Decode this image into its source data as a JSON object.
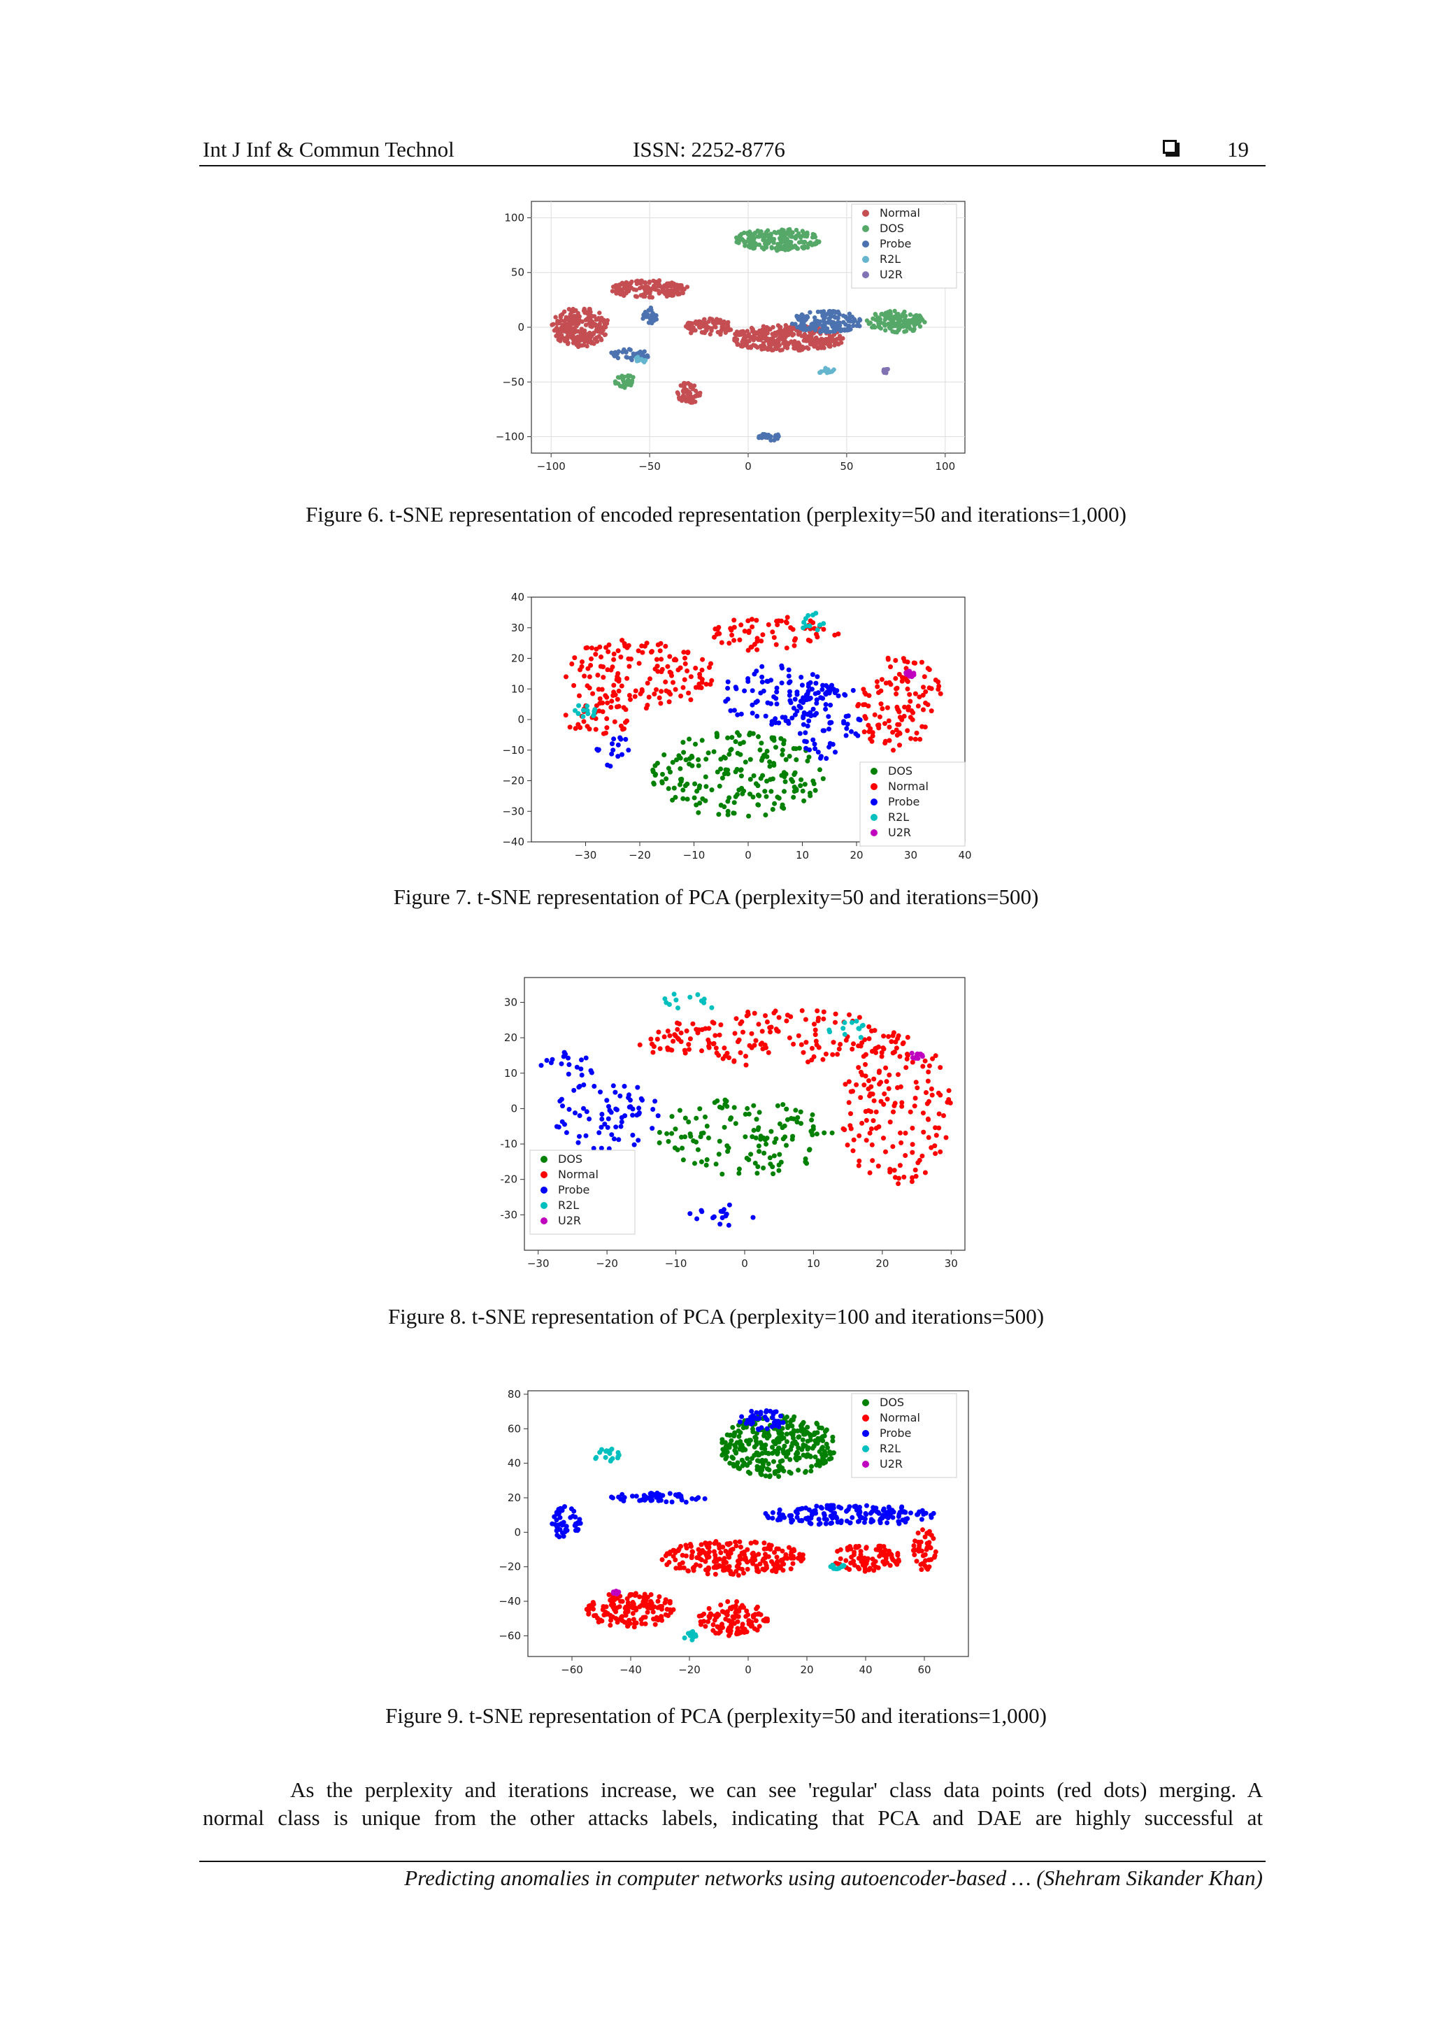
{
  "header": {
    "journal": "Int J Inf & Commun Technol",
    "issn": "ISSN: 2252-8776",
    "page_number": "19"
  },
  "captions": {
    "fig6": "Figure 6. t-SNE representation of encoded representation (perplexity=50 and iterations=1,000)",
    "fig7": "Figure 7. t-SNE representation of PCA (perplexity=50 and iterations=500)",
    "fig8": "Figure 8. t-SNE representation of PCA (perplexity=100 and iterations=500)",
    "fig9": "Figure 9. t-SNE representation of PCA (perplexity=50 and iterations=1,000)"
  },
  "body_text": {
    "line1": "As the perplexity and iterations increase, we can see 'regular' class data points (red dots) merging. A",
    "line2": "normal class is unique from the other attacks labels, indicating that PCA and DAE are highly successful at"
  },
  "footer": {
    "running_title": "Predicting anomalies in computer networks using autoencoder-based … (Shehram Sikander Khan)"
  },
  "colors": {
    "normal_fig6": "#c44e52",
    "dos_fig6": "#55a868",
    "probe_fig6": "#4c72b0",
    "r2l_fig6": "#64b5cd",
    "u2r_fig6": "#8172b3",
    "dos": "#008000",
    "normal": "#ff0000",
    "probe": "#0000ff",
    "r2l": "#00bfbf",
    "u2r": "#bf00bf"
  },
  "chart_data": [
    {
      "type": "scatter",
      "title": "",
      "xlabel": "",
      "ylabel": "",
      "xlim": [
        -110,
        110
      ],
      "ylim": [
        -115,
        115
      ],
      "x_ticks": [
        "−100",
        "−50",
        "0",
        "50",
        "100"
      ],
      "y_ticks": [
        "100",
        "50",
        "0",
        "−50",
        "−100"
      ],
      "legend": [
        "Normal",
        "DOS",
        "Probe",
        "R2L",
        "U2R"
      ],
      "legend_position": "top-right",
      "grid": true,
      "series": [
        {
          "name": "Normal",
          "clusters": [
            [
              -20,
              0,
              12,
              8
            ],
            [
              20,
              -10,
              30,
              12
            ],
            [
              -85,
              0,
              15,
              18
            ],
            [
              -30,
              -60,
              6,
              10
            ],
            [
              -50,
              35,
              20,
              8
            ]
          ]
        },
        {
          "name": "DOS",
          "clusters": [
            [
              15,
              80,
              22,
              10
            ],
            [
              75,
              5,
              15,
              10
            ],
            [
              -62,
              -50,
              6,
              6
            ]
          ]
        },
        {
          "name": "Probe",
          "clusters": [
            [
              40,
              5,
              18,
              10
            ],
            [
              10,
              -100,
              6,
              4
            ],
            [
              -60,
              -25,
              10,
              5
            ],
            [
              -50,
              10,
              4,
              8
            ]
          ]
        },
        {
          "name": "R2L",
          "clusters": [
            [
              -55,
              -30,
              3,
              3
            ],
            [
              40,
              -40,
              5,
              3
            ]
          ]
        },
        {
          "name": "U2R",
          "clusters": [
            [
              70,
              -40,
              2,
              2
            ]
          ]
        }
      ]
    },
    {
      "type": "scatter",
      "title": "",
      "xlabel": "",
      "ylabel": "",
      "xlim": [
        -40,
        40
      ],
      "ylim": [
        -40,
        40
      ],
      "x_ticks": [
        "−30",
        "−20",
        "−10",
        "0",
        "10",
        "20",
        "30",
        "40"
      ],
      "y_ticks": [
        "40",
        "30",
        "20",
        "10",
        "0",
        "−10",
        "−20",
        "−30",
        "−40"
      ],
      "legend": [
        "DOS",
        "Normal",
        "Probe",
        "R2L",
        "U2R"
      ],
      "legend_position": "lower-right",
      "grid": false,
      "series": [
        {
          "name": "DOS",
          "clusters": [
            [
              -2,
              -18,
              16,
              14
            ]
          ]
        },
        {
          "name": "Normal",
          "clusters": [
            [
              -20,
              15,
              14,
              12
            ],
            [
              5,
              28,
              12,
              6
            ],
            [
              28,
              5,
              8,
              16
            ],
            [
              -28,
              0,
              6,
              6
            ]
          ]
        },
        {
          "name": "Probe",
          "clusters": [
            [
              5,
              8,
              10,
              10
            ],
            [
              15,
              0,
              6,
              14
            ],
            [
              -25,
              -10,
              3,
              6
            ]
          ]
        },
        {
          "name": "R2L",
          "clusters": [
            [
              12,
              32,
              3,
              3
            ],
            [
              -30,
              3,
              2,
              3
            ]
          ]
        },
        {
          "name": "U2R",
          "clusters": [
            [
              30,
              15,
              1,
              1
            ]
          ]
        }
      ]
    },
    {
      "type": "scatter",
      "title": "",
      "xlabel": "",
      "ylabel": "",
      "xlim": [
        -32,
        32
      ],
      "ylim": [
        -40,
        37
      ],
      "x_ticks": [
        "−30",
        "−20",
        "−10",
        "0",
        "10",
        "20",
        "30"
      ],
      "y_ticks": [
        "30",
        "20",
        "10",
        "0",
        "-10",
        "-20",
        "-30"
      ],
      "legend": [
        "DOS",
        "Normal",
        "Probe",
        "R2L",
        "U2R"
      ],
      "legend_position": "lower-left",
      "grid": false,
      "series": [
        {
          "name": "DOS",
          "clusters": [
            [
              0,
              -8,
              13,
              11
            ]
          ]
        },
        {
          "name": "Normal",
          "clusters": [
            [
              22,
              0,
              8,
              22
            ],
            [
              5,
              20,
              18,
              8
            ],
            [
              -10,
              20,
              6,
              5
            ]
          ]
        },
        {
          "name": "Probe",
          "clusters": [
            [
              -20,
              -2,
              8,
              10
            ],
            [
              -3,
              -30,
              6,
              3
            ],
            [
              -25,
              12,
              5,
              4
            ]
          ]
        },
        {
          "name": "R2L",
          "clusters": [
            [
              -8,
              30,
              4,
              3
            ],
            [
              15,
              22,
              3,
              3
            ]
          ]
        },
        {
          "name": "U2R",
          "clusters": [
            [
              25,
              15,
              1,
              1
            ]
          ]
        }
      ]
    },
    {
      "type": "scatter",
      "title": "",
      "xlabel": "",
      "ylabel": "",
      "xlim": [
        -75,
        75
      ],
      "ylim": [
        -72,
        82
      ],
      "x_ticks": [
        "−60",
        "−40",
        "−20",
        "0",
        "20",
        "40",
        "60"
      ],
      "y_ticks": [
        "80",
        "60",
        "40",
        "20",
        "0",
        "−20",
        "−40",
        "−60"
      ],
      "legend": [
        "DOS",
        "Normal",
        "Probe",
        "R2L",
        "U2R"
      ],
      "legend_position": "top-right",
      "grid": false,
      "series": [
        {
          "name": "DOS",
          "clusters": [
            [
              10,
              50,
              20,
              18
            ]
          ]
        },
        {
          "name": "Normal",
          "clusters": [
            [
              -40,
              -45,
              16,
              10
            ],
            [
              -5,
              -50,
              12,
              10
            ],
            [
              -5,
              -15,
              25,
              10
            ],
            [
              40,
              -15,
              12,
              8
            ],
            [
              60,
              -10,
              4,
              12
            ]
          ]
        },
        {
          "name": "Probe",
          "clusters": [
            [
              -62,
              5,
              5,
              10
            ],
            [
              -30,
              20,
              18,
              3
            ],
            [
              35,
              10,
              30,
              6
            ],
            [
              5,
              65,
              8,
              6
            ]
          ]
        },
        {
          "name": "R2L",
          "clusters": [
            [
              -48,
              45,
              5,
              4
            ],
            [
              -20,
              -60,
              3,
              3
            ],
            [
              30,
              -20,
              3,
              2
            ]
          ]
        },
        {
          "name": "U2R",
          "clusters": [
            [
              -45,
              -35,
              1,
              1
            ]
          ]
        }
      ]
    }
  ]
}
